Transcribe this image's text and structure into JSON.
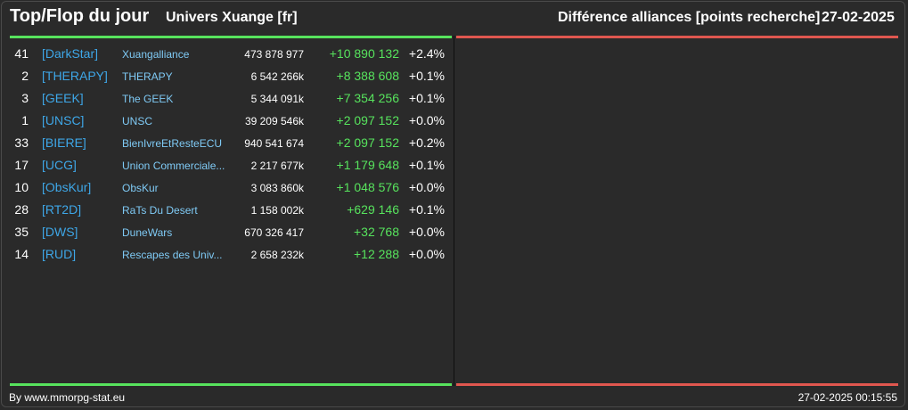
{
  "header": {
    "title": "Top/Flop du jour",
    "universe": "Univers Xuange [fr]",
    "subtitle": "Différence alliances [points recherche]",
    "date": "27-02-2025"
  },
  "colors": {
    "positive": "#57e35d",
    "negative": "#e0574f",
    "tag": "#3ea7e8",
    "name": "#7fcaf5"
  },
  "rows": [
    {
      "rank": "41",
      "tag": "[DarkStar]",
      "name": "Xuangalliance",
      "points": "473 878 977",
      "delta": "+10 890 132",
      "pct": "+2.4%"
    },
    {
      "rank": "2",
      "tag": "[THERAPY]",
      "name": "THERAPY",
      "points": "6 542 266k",
      "delta": "+8 388 608",
      "pct": "+0.1%"
    },
    {
      "rank": "3",
      "tag": "[GEEK]",
      "name": "The GEEK",
      "points": "5 344 091k",
      "delta": "+7 354 256",
      "pct": "+0.1%"
    },
    {
      "rank": "1",
      "tag": "[UNSC]",
      "name": "UNSC",
      "points": "39 209 546k",
      "delta": "+2 097 152",
      "pct": "+0.0%"
    },
    {
      "rank": "33",
      "tag": "[BIERE]",
      "name": "BienIvreEtResteECU",
      "points": "940 541 674",
      "delta": "+2 097 152",
      "pct": "+0.2%"
    },
    {
      "rank": "17",
      "tag": "[UCG]",
      "name": "Union Commerciale...",
      "points": "2 217 677k",
      "delta": "+1 179 648",
      "pct": "+0.1%"
    },
    {
      "rank": "10",
      "tag": "[ObsKur]",
      "name": "ObsKur",
      "points": "3 083 860k",
      "delta": "+1 048 576",
      "pct": "+0.0%"
    },
    {
      "rank": "28",
      "tag": "[RT2D]",
      "name": "RaTs Du Desert",
      "points": "1 158 002k",
      "delta": "+629 146",
      "pct": "+0.1%"
    },
    {
      "rank": "35",
      "tag": "[DWS]",
      "name": "DuneWars",
      "points": "670 326 417",
      "delta": "+32 768",
      "pct": "+0.0%"
    },
    {
      "rank": "14",
      "tag": "[RUD]",
      "name": "Rescapes des Univ...",
      "points": "2 658 232k",
      "delta": "+12 288",
      "pct": "+0.0%"
    }
  ],
  "footer": {
    "credit": "By www.mmorpg-stat.eu",
    "timestamp": "27-02-2025 00:15:55"
  }
}
